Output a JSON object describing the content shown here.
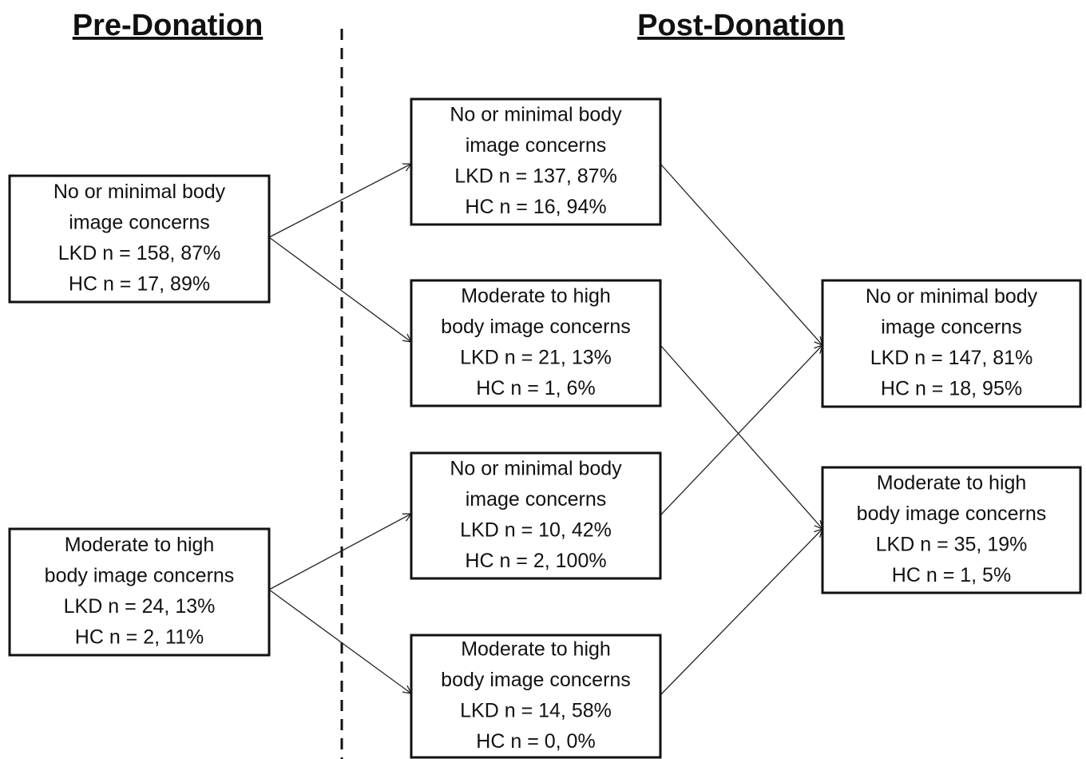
{
  "headers": [
    "Pre-Donation",
    "Post-Donation"
  ],
  "nodes": [
    {
      "lines": [
        "No or minimal body",
        "image concerns",
        "LKD n = 158, 87%",
        "HC n = 17, 89%"
      ]
    },
    {
      "lines": [
        "Moderate to high",
        "body image concerns",
        "LKD n = 24, 13%",
        "HC n = 2, 11%"
      ]
    },
    {
      "lines": [
        "No or minimal body",
        "image concerns",
        "LKD n = 137, 87%",
        "HC n = 16, 94%"
      ]
    },
    {
      "lines": [
        "Moderate to high",
        "body image concerns",
        "LKD n = 21, 13%",
        "HC n = 1, 6%"
      ]
    },
    {
      "lines": [
        "No or minimal body",
        "image concerns",
        "LKD n = 10, 42%",
        "HC n = 2, 100%"
      ]
    },
    {
      "lines": [
        "Moderate to high",
        "body image concerns",
        "LKD n = 14, 58%",
        "HC n = 0, 0%"
      ]
    },
    {
      "lines": [
        "No or minimal body",
        "image concerns",
        "LKD n = 147, 81%",
        "HC n = 18, 95%"
      ]
    },
    {
      "lines": [
        "Moderate to high",
        "body image concerns",
        "LKD n = 35, 19%",
        "HC n = 1, 5%"
      ]
    }
  ]
}
